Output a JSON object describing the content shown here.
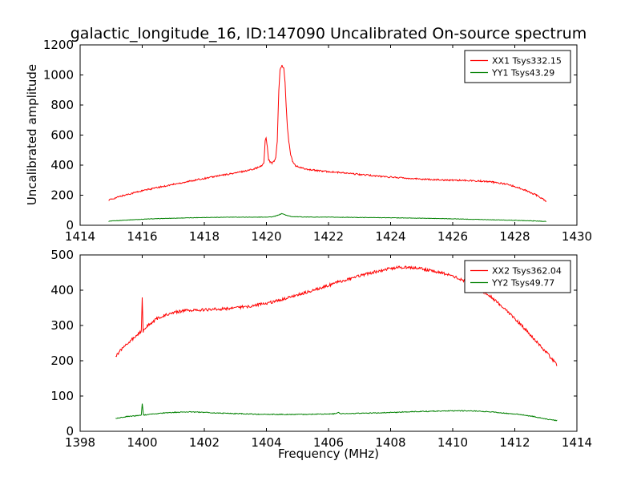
{
  "figure": {
    "title": "galactic_longitude_16, ID:147090 Uncalibrated On-source spectrum",
    "xlabel": "Frequency (MHz)",
    "ylabel": "Uncalibrated amplitude",
    "background": "#ffffff",
    "axis_color": "#000000"
  },
  "chart_data": [
    {
      "type": "line",
      "position": "top",
      "xlim": [
        1414,
        1430
      ],
      "ylim": [
        0,
        1200
      ],
      "xticks": [
        1414,
        1416,
        1418,
        1420,
        1422,
        1424,
        1426,
        1428,
        1430
      ],
      "yticks": [
        0,
        200,
        400,
        600,
        800,
        1000,
        1200
      ],
      "grid": false,
      "legend_position": "upper right",
      "series": [
        {
          "name": "XX1 Tsys332.15",
          "color": "#ff0000",
          "noise": 5,
          "points": [
            [
              1414.93,
              168
            ],
            [
              1415.3,
              193
            ],
            [
              1415.8,
              220
            ],
            [
              1416.3,
              243
            ],
            [
              1417.0,
              272
            ],
            [
              1417.7,
              300
            ],
            [
              1418.4,
              327
            ],
            [
              1419.0,
              348
            ],
            [
              1419.4,
              365
            ],
            [
              1419.7,
              382
            ],
            [
              1419.85,
              395
            ],
            [
              1419.92,
              420
            ],
            [
              1419.96,
              560
            ],
            [
              1419.99,
              585
            ],
            [
              1420.03,
              520
            ],
            [
              1420.07,
              440
            ],
            [
              1420.12,
              420
            ],
            [
              1420.18,
              415
            ],
            [
              1420.25,
              425
            ],
            [
              1420.3,
              450
            ],
            [
              1420.35,
              560
            ],
            [
              1420.4,
              900
            ],
            [
              1420.44,
              1040
            ],
            [
              1420.5,
              1062
            ],
            [
              1420.56,
              1045
            ],
            [
              1420.6,
              950
            ],
            [
              1420.64,
              780
            ],
            [
              1420.68,
              640
            ],
            [
              1420.72,
              560
            ],
            [
              1420.78,
              470
            ],
            [
              1420.85,
              420
            ],
            [
              1420.95,
              395
            ],
            [
              1421.1,
              382
            ],
            [
              1421.4,
              370
            ],
            [
              1421.8,
              360
            ],
            [
              1422.3,
              352
            ],
            [
              1423.0,
              338
            ],
            [
              1423.7,
              325
            ],
            [
              1424.4,
              315
            ],
            [
              1425.1,
              306
            ],
            [
              1425.8,
              301
            ],
            [
              1426.4,
              299
            ],
            [
              1426.9,
              294
            ],
            [
              1427.3,
              287
            ],
            [
              1427.7,
              275
            ],
            [
              1428.0,
              258
            ],
            [
              1428.3,
              237
            ],
            [
              1428.7,
              200
            ],
            [
              1429.0,
              163
            ]
          ]
        },
        {
          "name": "YY1 Tsys43.29",
          "color": "#008000",
          "noise": 1.5,
          "points": [
            [
              1414.93,
              27
            ],
            [
              1415.5,
              35
            ],
            [
              1416.2,
              42
            ],
            [
              1417.0,
              47
            ],
            [
              1418.0,
              52
            ],
            [
              1419.0,
              54
            ],
            [
              1419.8,
              54
            ],
            [
              1420.2,
              56
            ],
            [
              1420.35,
              65
            ],
            [
              1420.5,
              78
            ],
            [
              1420.62,
              68
            ],
            [
              1420.8,
              58
            ],
            [
              1421.2,
              55
            ],
            [
              1422.0,
              54
            ],
            [
              1423.0,
              52
            ],
            [
              1424.0,
              50
            ],
            [
              1425.0,
              47
            ],
            [
              1426.0,
              43
            ],
            [
              1427.0,
              38
            ],
            [
              1428.0,
              33
            ],
            [
              1428.6,
              29
            ],
            [
              1429.0,
              26
            ]
          ]
        }
      ]
    },
    {
      "type": "line",
      "position": "bottom",
      "xlim": [
        1398,
        1414
      ],
      "ylim": [
        0,
        500
      ],
      "xticks": [
        1398,
        1400,
        1402,
        1404,
        1406,
        1408,
        1410,
        1412,
        1414
      ],
      "yticks": [
        0,
        100,
        200,
        300,
        400,
        500
      ],
      "grid": false,
      "legend_position": "upper right",
      "series": [
        {
          "name": "XX2 Tsys362.04",
          "color": "#ff0000",
          "noise": 4,
          "points": [
            [
              1399.15,
              213
            ],
            [
              1399.35,
              235
            ],
            [
              1399.6,
              255
            ],
            [
              1399.8,
              270
            ],
            [
              1399.93,
              280
            ],
            [
              1399.97,
              285
            ],
            [
              1400.0,
              380
            ],
            [
              1400.03,
              282
            ],
            [
              1400.1,
              292
            ],
            [
              1400.25,
              305
            ],
            [
              1400.45,
              318
            ],
            [
              1400.7,
              328
            ],
            [
              1401.0,
              337
            ],
            [
              1401.4,
              342
            ],
            [
              1401.9,
              344
            ],
            [
              1402.4,
              346
            ],
            [
              1402.9,
              349
            ],
            [
              1403.4,
              354
            ],
            [
              1403.9,
              361
            ],
            [
              1404.3,
              369
            ],
            [
              1404.7,
              378
            ],
            [
              1405.1,
              389
            ],
            [
              1405.5,
              400
            ],
            [
              1405.9,
              411
            ],
            [
              1406.3,
              422
            ],
            [
              1406.7,
              433
            ],
            [
              1407.1,
              443
            ],
            [
              1407.5,
              452
            ],
            [
              1407.9,
              460
            ],
            [
              1408.2,
              464
            ],
            [
              1408.5,
              465
            ],
            [
              1408.8,
              463
            ],
            [
              1409.1,
              459
            ],
            [
              1409.4,
              454
            ],
            [
              1409.7,
              448
            ],
            [
              1410.0,
              440
            ],
            [
              1410.3,
              429
            ],
            [
              1410.6,
              416
            ],
            [
              1410.9,
              401
            ],
            [
              1411.2,
              383
            ],
            [
              1411.5,
              361
            ],
            [
              1411.8,
              337
            ],
            [
              1412.1,
              311
            ],
            [
              1412.4,
              283
            ],
            [
              1412.7,
              254
            ],
            [
              1413.0,
              225
            ],
            [
              1413.2,
              205
            ],
            [
              1413.35,
              188
            ]
          ]
        },
        {
          "name": "YY2 Tsys49.77",
          "color": "#008000",
          "noise": 1.2,
          "points": [
            [
              1399.15,
              37
            ],
            [
              1399.5,
              42
            ],
            [
              1399.8,
              44
            ],
            [
              1399.97,
              45
            ],
            [
              1400.0,
              78
            ],
            [
              1400.04,
              46
            ],
            [
              1400.3,
              49
            ],
            [
              1400.7,
              52
            ],
            [
              1401.1,
              54
            ],
            [
              1401.6,
              55
            ],
            [
              1402.1,
              53
            ],
            [
              1402.6,
              51
            ],
            [
              1403.2,
              50
            ],
            [
              1403.8,
              48
            ],
            [
              1404.5,
              48
            ],
            [
              1405.2,
              48
            ],
            [
              1405.9,
              49
            ],
            [
              1406.25,
              50
            ],
            [
              1406.3,
              54
            ],
            [
              1406.38,
              50
            ],
            [
              1407.0,
              51
            ],
            [
              1407.6,
              52
            ],
            [
              1408.2,
              54
            ],
            [
              1408.8,
              56
            ],
            [
              1409.4,
              57
            ],
            [
              1410.0,
              58
            ],
            [
              1410.6,
              58
            ],
            [
              1411.1,
              56
            ],
            [
              1411.6,
              52
            ],
            [
              1412.1,
              48
            ],
            [
              1412.6,
              42
            ],
            [
              1413.0,
              35
            ],
            [
              1413.35,
              30
            ]
          ]
        }
      ]
    }
  ]
}
